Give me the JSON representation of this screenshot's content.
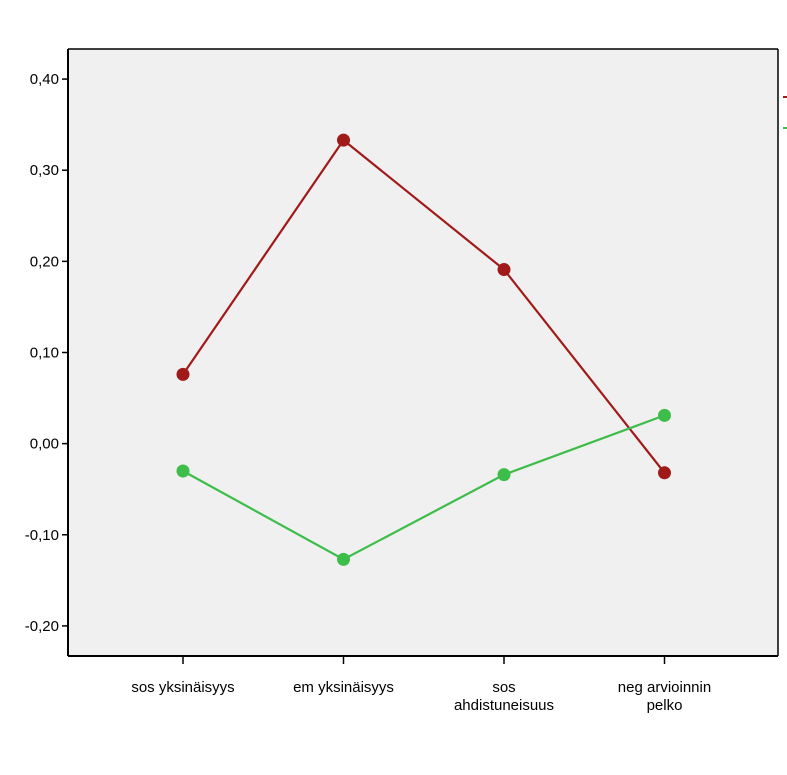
{
  "chart_data": {
    "type": "line",
    "title": "",
    "xlabel": "",
    "ylabel": "",
    "categories": [
      [
        "sos yksinäisyys"
      ],
      [
        "em yksinäisyys"
      ],
      [
        "sos",
        "ahdistuneisuus"
      ],
      [
        "neg arvioinnin",
        "pelko"
      ]
    ],
    "y_ticks": [
      "0,40",
      "0,30",
      "0,20",
      "0,10",
      "0,00",
      "-0,10",
      "-0,20"
    ],
    "y_tick_values": [
      0.4,
      0.3,
      0.2,
      0.1,
      0.0,
      -0.1,
      -0.2
    ],
    "ylim": [
      -0.233,
      0.433
    ],
    "grid": false,
    "legend": "right (cropped)",
    "series": [
      {
        "color": "#a11a1a",
        "values": [
          0.076,
          0.333,
          0.191,
          -0.032
        ]
      },
      {
        "color": "#3dbd4a",
        "values": [
          -0.03,
          -0.127,
          -0.034,
          0.031
        ]
      }
    ],
    "plot_background": "#f0f0f0"
  }
}
